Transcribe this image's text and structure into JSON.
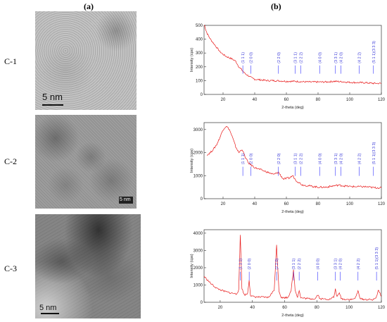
{
  "figure": {
    "panel_a_label": "(a)",
    "panel_b_label": "(b)",
    "rows": [
      {
        "label": "C-1",
        "scale_bar": "5 nm"
      },
      {
        "label": "C-2",
        "scale_bar": "5 nm"
      },
      {
        "label": "C-3",
        "scale_bar": "5 nm"
      }
    ]
  },
  "colors": {
    "pattern": "#e81818",
    "reflection_label": "#3a3ad8",
    "reference_line": "#3030ff",
    "axis": "#333333"
  },
  "chart_data": [
    {
      "type": "line",
      "xlabel": "2-theta (deg)",
      "ylabel": "Intensity (cps)",
      "xlim": [
        8,
        120
      ],
      "ylim": [
        0,
        500
      ],
      "xticks": [
        20,
        40,
        60,
        80,
        100,
        120
      ],
      "yticks": [
        0,
        100,
        200,
        300,
        400,
        500
      ],
      "grid": false,
      "series": [
        {
          "x": [
            8,
            9,
            10,
            12,
            14,
            16,
            18,
            20,
            22,
            24,
            26,
            28,
            30,
            32,
            34,
            36,
            38,
            40,
            44,
            48,
            52,
            56,
            60,
            65,
            70,
            75,
            80,
            85,
            90,
            95,
            100,
            105,
            110,
            115,
            120
          ],
          "y": [
            520,
            470,
            440,
            400,
            370,
            340,
            310,
            290,
            275,
            265,
            255,
            240,
            200,
            175,
            150,
            135,
            120,
            110,
            105,
            100,
            100,
            98,
            95,
            95,
            92,
            90,
            90,
            90,
            95,
            92,
            88,
            85,
            85,
            80,
            80
          ]
        }
      ],
      "reflections": [
        {
          "label": "(1 1 1)",
          "x": 32.5
        },
        {
          "label": "(2 0 0)",
          "x": 37.5
        },
        {
          "label": "(2 2 0)",
          "x": 55
        },
        {
          "label": "(3 1 1)",
          "x": 65.5
        },
        {
          "label": "(2 2 2)",
          "x": 69
        },
        {
          "label": "(4 0 0)",
          "x": 81
        },
        {
          "label": "(3 3 1)",
          "x": 91
        },
        {
          "label": "(4 2 0)",
          "x": 94.5
        },
        {
          "label": "(4 2 2)",
          "x": 106
        },
        {
          "label": "(5 1 1)(3 3 3)",
          "x": 115
        }
      ]
    },
    {
      "type": "line",
      "xlabel": "2-theta (deg)",
      "ylabel": "Intensity (cps)",
      "xlim": [
        8,
        120
      ],
      "ylim": [
        0,
        3300
      ],
      "xticks": [
        20,
        40,
        60,
        80,
        100,
        120
      ],
      "yticks": [
        0,
        1000,
        2000,
        3000
      ],
      "grid": false,
      "series": [
        {
          "x": [
            10,
            12,
            14,
            16,
            18,
            20,
            22,
            24,
            26,
            28,
            30,
            32,
            34,
            36,
            38,
            40,
            44,
            48,
            52,
            55,
            58,
            62,
            64,
            66,
            70,
            75,
            80,
            85,
            90,
            93,
            96,
            100,
            105,
            110,
            115,
            120
          ],
          "y": [
            1900,
            2000,
            2150,
            2350,
            2650,
            3000,
            3150,
            3000,
            2650,
            2250,
            2000,
            2150,
            1800,
            1550,
            1450,
            1350,
            1250,
            1150,
            1050,
            1150,
            850,
            900,
            1000,
            800,
            600,
            550,
            500,
            500,
            560,
            590,
            560,
            530,
            520,
            520,
            480,
            470
          ]
        }
      ],
      "reflections": [
        {
          "label": "(1 1 1)",
          "x": 32.5
        },
        {
          "label": "(2 0 0)",
          "x": 37.5
        },
        {
          "label": "(2 2 0)",
          "x": 55
        },
        {
          "label": "(3 1 1)",
          "x": 65.5
        },
        {
          "label": "(2 2 2)",
          "x": 69
        },
        {
          "label": "(4 0 0)",
          "x": 81
        },
        {
          "label": "(3 3 1)",
          "x": 91
        },
        {
          "label": "(4 2 0)",
          "x": 94.5
        },
        {
          "label": "(4 2 2)",
          "x": 106
        },
        {
          "label": "(5 1 1)(3 3 3)",
          "x": 115
        }
      ]
    },
    {
      "type": "line",
      "xlabel": "2-theta (deg)",
      "ylabel": "Intensity (cps)",
      "xlim": [
        10,
        120
      ],
      "ylim": [
        0,
        4200
      ],
      "xticks": [
        20,
        40,
        60,
        80,
        100,
        120
      ],
      "yticks": [
        0,
        1000,
        2000,
        3000,
        4000
      ],
      "grid": false,
      "series": [
        {
          "x": [
            10,
            14,
            18,
            22,
            26,
            30,
            31.5,
            32.5,
            33.5,
            35,
            37,
            38,
            38.8,
            40,
            44,
            50,
            53.5,
            55,
            56.5,
            58,
            62,
            64,
            65.5,
            66.5,
            68,
            69,
            70,
            75,
            79,
            80.5,
            82,
            88,
            90.5,
            91.5,
            92.5,
            94,
            95,
            96,
            102,
            104,
            105.5,
            107,
            110,
            115,
            117,
            118,
            120
          ],
          "y": [
            1500,
            1100,
            800,
            650,
            550,
            480,
            700,
            3900,
            800,
            420,
            500,
            1300,
            400,
            330,
            300,
            280,
            700,
            3300,
            650,
            260,
            280,
            700,
            1850,
            700,
            300,
            700,
            250,
            210,
            200,
            450,
            200,
            180,
            300,
            750,
            300,
            550,
            250,
            180,
            160,
            260,
            650,
            200,
            160,
            150,
            320,
            700,
            350
          ]
        }
      ],
      "reflections": [
        {
          "label": "(1 1 1)",
          "x": 32.5
        },
        {
          "label": "(2 0 0)",
          "x": 38
        },
        {
          "label": "(2 2 0)",
          "x": 55
        },
        {
          "label": "(3 1 1)",
          "x": 65.5
        },
        {
          "label": "(2 2 2)",
          "x": 69
        },
        {
          "label": "(4 0 0)",
          "x": 80.5
        },
        {
          "label": "(3 3 1)",
          "x": 91.5
        },
        {
          "label": "(4 2 0)",
          "x": 94.5
        },
        {
          "label": "(4 2 2)",
          "x": 105.5
        },
        {
          "label": "(5 1 1)(3 3 3)",
          "x": 117
        }
      ]
    }
  ]
}
